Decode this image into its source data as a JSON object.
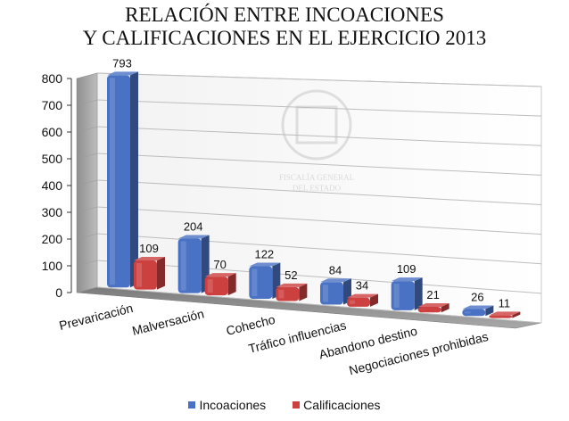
{
  "chart_data": {
    "type": "bar",
    "title": [
      "RELACIÓN ENTRE INCOACIONES",
      "Y CALIFICACIONES EN EL EJERCICIO 2013"
    ],
    "categories": [
      "Prevaricación",
      "Malversación",
      "Cohecho",
      "Tráfico influencias",
      "Abandono destino",
      "Negociaciones prohibidas"
    ],
    "series": [
      {
        "name": "Incoaciones",
        "values": [
          793,
          204,
          122,
          84,
          109,
          26
        ],
        "color": "#4a72c4"
      },
      {
        "name": "Calificaciones",
        "values": [
          109,
          70,
          52,
          34,
          21,
          11
        ],
        "color": "#cc4040"
      }
    ],
    "ylim": [
      0,
      800
    ],
    "yticks": [
      0,
      100,
      200,
      300,
      400,
      500,
      600,
      700,
      800
    ],
    "grid": true,
    "legend_position": "bottom",
    "style": "3d-column"
  },
  "watermark": {
    "lines": [
      "FISCALÍA GENERAL",
      "DEL ESTADO"
    ]
  }
}
